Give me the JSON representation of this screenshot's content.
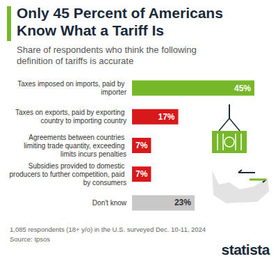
{
  "chart_data": {
    "type": "bar",
    "orientation": "horizontal",
    "title": "Only 45 Percent of Americans Know What a Tariff Is",
    "subtitle": "Share of respondents who think the following definition of tariffs is accurate",
    "categories": [
      "Taxes imposed on imports, paid by importer",
      "Taxes on exports, paid by exporting country to importing country",
      "Agreements between countries limiting trade quantity, exceeding limits incurs penalties",
      "Subsidies provided to domestic producers to further competition, paid by consumers",
      "Don't know"
    ],
    "values": [
      45,
      17,
      7,
      7,
      23
    ],
    "value_labels": [
      "45%",
      "17%",
      "7%",
      "7%",
      "23%"
    ],
    "colors": [
      "#76b82a",
      "#d7191c",
      "#d7191c",
      "#d7191c",
      "#c8c8c8"
    ],
    "xlim": [
      0,
      45
    ],
    "data_labels": true,
    "tick_labels": "y",
    "grid": false,
    "footnote": "1,085 respondents (18+ y/o) in the U.S. surveyed Dec. 10-11, 2024",
    "source": "Source: Ipsos",
    "logo": "statista"
  }
}
